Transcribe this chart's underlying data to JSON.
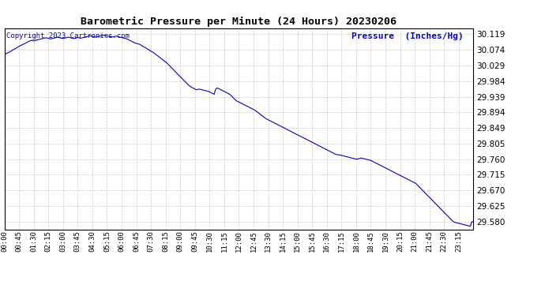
{
  "title": "Barometric Pressure per Minute (24 Hours) 20230206",
  "ylabel": "Pressure  (Inches/Hg)",
  "copyright": "Copyright 2023 Cartronics.com",
  "line_color": "#0000CC",
  "bg_color": "#ffffff",
  "grid_color": "#bbbbbb",
  "title_color": "#000000",
  "ylabel_color": "#0000CC",
  "copyright_color": "#0000CC",
  "ylim_min": 29.558,
  "ylim_max": 30.136,
  "yticks": [
    29.58,
    29.625,
    29.67,
    29.715,
    29.76,
    29.805,
    29.849,
    29.894,
    29.939,
    29.984,
    30.029,
    30.074,
    30.119
  ],
  "xtick_labels": [
    "00:00",
    "00:45",
    "01:30",
    "02:15",
    "03:00",
    "03:45",
    "04:30",
    "05:15",
    "06:00",
    "06:45",
    "07:30",
    "08:15",
    "09:00",
    "09:45",
    "10:30",
    "11:15",
    "12:00",
    "12:45",
    "13:30",
    "14:15",
    "15:00",
    "15:45",
    "16:30",
    "17:15",
    "18:00",
    "18:45",
    "19:30",
    "20:15",
    "21:00",
    "21:45",
    "22:30",
    "23:15"
  ],
  "pressure_profile": [
    30.06,
    30.062,
    30.064,
    30.066,
    30.068,
    30.07,
    30.073,
    30.075,
    30.077,
    30.079,
    30.082,
    30.084,
    30.086,
    30.088,
    30.09,
    30.092,
    30.094,
    30.096,
    30.098,
    30.1,
    30.101,
    30.1,
    30.099,
    30.101,
    30.102,
    30.103,
    30.104,
    30.105,
    30.106,
    30.107,
    30.108,
    30.108,
    30.107,
    30.106,
    30.105,
    30.106,
    30.107,
    30.108,
    30.109,
    30.11,
    30.109,
    30.108,
    30.107,
    30.106,
    30.107,
    30.108,
    30.109,
    30.11,
    30.109,
    30.108,
    30.107,
    30.106,
    30.107,
    30.108,
    30.109,
    30.108,
    30.107,
    30.108,
    30.109,
    30.11,
    30.111,
    30.112,
    30.113,
    30.114,
    30.113,
    30.112,
    30.111,
    30.11,
    30.111,
    30.112,
    30.113,
    30.114,
    30.115,
    30.116,
    30.115,
    30.114,
    30.113,
    30.112,
    30.111,
    30.11,
    30.111,
    30.112,
    30.113,
    30.112,
    30.111,
    30.11,
    30.109,
    30.108,
    30.107,
    30.106,
    30.105,
    30.103,
    30.101,
    30.099,
    30.097,
    30.095,
    30.093,
    30.092,
    30.091,
    30.09,
    30.088,
    30.085,
    30.083,
    30.081,
    30.079,
    30.076,
    30.074,
    30.071,
    30.069,
    30.067,
    30.064,
    30.061,
    30.058,
    30.055,
    30.052,
    30.049,
    30.046,
    30.043,
    30.04,
    30.037,
    30.033,
    30.029,
    30.025,
    30.021,
    30.017,
    30.013,
    30.009,
    30.005,
    30.001,
    29.997,
    29.993,
    29.989,
    29.985,
    29.981,
    29.977,
    29.973,
    29.97,
    29.967,
    29.965,
    29.963,
    29.961,
    29.959,
    29.96,
    29.961,
    29.96,
    29.959,
    29.958,
    29.957,
    29.956,
    29.955,
    29.954,
    29.952,
    29.95,
    29.948,
    29.946,
    29.96,
    29.964,
    29.963,
    29.961,
    29.959,
    29.957,
    29.955,
    29.953,
    29.951,
    29.949,
    29.947,
    29.944,
    29.94,
    29.936,
    29.932,
    29.928,
    29.926,
    29.924,
    29.922,
    29.92,
    29.918,
    29.916,
    29.914,
    29.912,
    29.91,
    29.908,
    29.906,
    29.904,
    29.902,
    29.9,
    29.897,
    29.894,
    29.891,
    29.888,
    29.885,
    29.882,
    29.879,
    29.876,
    29.874,
    29.872,
    29.87,
    29.868,
    29.866,
    29.864,
    29.862,
    29.86,
    29.858,
    29.856,
    29.854,
    29.852,
    29.85,
    29.848,
    29.846,
    29.844,
    29.842,
    29.84,
    29.838,
    29.836,
    29.834,
    29.832,
    29.83,
    29.828,
    29.826,
    29.824,
    29.822,
    29.82,
    29.818,
    29.816,
    29.814,
    29.812,
    29.81,
    29.808,
    29.806,
    29.804,
    29.802,
    29.8,
    29.798,
    29.796,
    29.794,
    29.792,
    29.79,
    29.788,
    29.786,
    29.784,
    29.782,
    29.78,
    29.778,
    29.776,
    29.774,
    29.773,
    29.772,
    29.772,
    29.771,
    29.77,
    29.769,
    29.768,
    29.767,
    29.766,
    29.765,
    29.764,
    29.763,
    29.762,
    29.761,
    29.76,
    29.76,
    29.761,
    29.762,
    29.763,
    29.762,
    29.761,
    29.76,
    29.759,
    29.758,
    29.757,
    29.756,
    29.754,
    29.752,
    29.75,
    29.748,
    29.746,
    29.744,
    29.742,
    29.74,
    29.738,
    29.736,
    29.734,
    29.732,
    29.73,
    29.728,
    29.726,
    29.724,
    29.722,
    29.72,
    29.718,
    29.716,
    29.714,
    29.712,
    29.71,
    29.708,
    29.706,
    29.704,
    29.702,
    29.7,
    29.698,
    29.696,
    29.694,
    29.692,
    29.69,
    29.686,
    29.682,
    29.678,
    29.674,
    29.67,
    29.666,
    29.662,
    29.658,
    29.654,
    29.65,
    29.646,
    29.642,
    29.638,
    29.634,
    29.63,
    29.626,
    29.622,
    29.618,
    29.614,
    29.61,
    29.606,
    29.602,
    29.598,
    29.594,
    29.59,
    29.586,
    29.582,
    29.579,
    29.578,
    29.577,
    29.576,
    29.575,
    29.574,
    29.573,
    29.572,
    29.571,
    29.57,
    29.569,
    29.568,
    29.567,
    29.58,
    29.58
  ]
}
